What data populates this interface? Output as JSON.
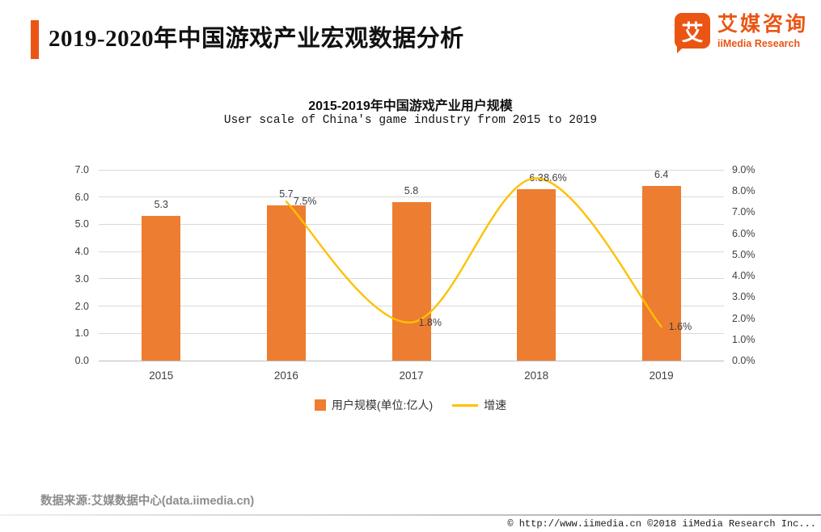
{
  "header": {
    "title": "2019-2020年中国游戏产业宏观数据分析",
    "logo": {
      "glyph": "艾",
      "brand_cn": "艾媒咨询",
      "brand_en": "iiMedia Research"
    }
  },
  "chart": {
    "title": "2015-2019年中国游戏产业用户规模",
    "subtitle": "User scale of China's game industry from 2015 to 2019"
  },
  "chart_data": {
    "type": "bar",
    "title": "2015-2019年中国游戏产业用户规模",
    "subtitle": "User scale of China's game industry from 2015 to 2019",
    "categories": [
      "2015",
      "2016",
      "2017",
      "2018",
      "2019"
    ],
    "series": [
      {
        "name": "用户规模(单位:亿人)",
        "type": "bar",
        "axis": "left",
        "color": "#ed7d31",
        "values": [
          5.3,
          5.7,
          5.8,
          6.3,
          6.4
        ]
      },
      {
        "name": "增速",
        "type": "line",
        "axis": "right",
        "unit": "%",
        "color": "#ffc000",
        "values": [
          null,
          7.5,
          1.8,
          8.6,
          1.6
        ]
      }
    ],
    "left_axis": {
      "min": 0,
      "max": 7,
      "step": 1,
      "ticks": [
        "0.0",
        "1.0",
        "2.0",
        "3.0",
        "4.0",
        "5.0",
        "6.0",
        "7.0"
      ]
    },
    "right_axis": {
      "min": 0,
      "max": 9,
      "step": 1,
      "ticks": [
        "0.0%",
        "1.0%",
        "2.0%",
        "3.0%",
        "4.0%",
        "5.0%",
        "6.0%",
        "7.0%",
        "8.0%",
        "9.0%"
      ]
    },
    "grid": true,
    "legend_position": "bottom"
  },
  "legend": {
    "bar_label": "用户规模(单位:亿人)",
    "line_label": "增速"
  },
  "source": "数据来源:艾媒数据中心(data.iimedia.cn)",
  "footer": {
    "text": "© http://www.iimedia.cn   ©2018   iiMedia Research   Inc..."
  }
}
